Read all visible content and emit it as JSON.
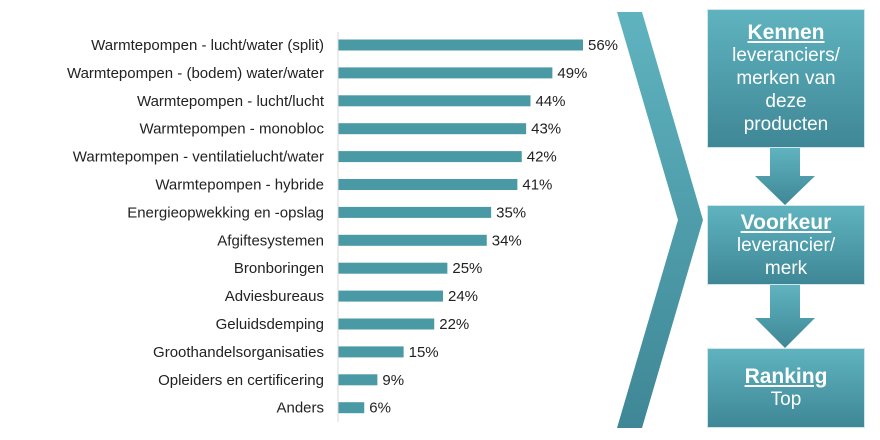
{
  "chart_data": {
    "type": "bar",
    "orientation": "horizontal",
    "categories": [
      "Warmtepompen - lucht/water (split)",
      "Warmtepompen - (bodem) water/water",
      "Warmtepompen - lucht/lucht",
      "Warmtepompen - monobloc",
      "Warmtepompen - ventilatielucht/water",
      "Warmtepompen - hybride",
      "Energieopwekking en -opslag",
      "Afgiftesystemen",
      "Bronboringen",
      "Adviesbureaus",
      "Geluidsdemping",
      "Groothandelsorganisaties",
      "Opleiders en certificering",
      "Anders"
    ],
    "values": [
      56,
      49,
      44,
      43,
      42,
      41,
      35,
      34,
      25,
      24,
      22,
      15,
      9,
      6
    ],
    "labels": [
      "56%",
      "49%",
      "44%",
      "43%",
      "42%",
      "41%",
      "35%",
      "34%",
      "25%",
      "24%",
      "22%",
      "15%",
      "9%",
      "6%"
    ],
    "xlim": [
      0,
      100
    ],
    "grid": false,
    "bar_color": "#4a9aa6"
  },
  "flow": {
    "steps": [
      {
        "title": "Kennen",
        "text": [
          "leveranciers/",
          "merken van",
          "deze",
          "producten"
        ]
      },
      {
        "title": "Voorkeur",
        "text": [
          "leverancier/",
          "merk"
        ]
      },
      {
        "title": "Ranking",
        "text": [
          "Top"
        ]
      }
    ],
    "color": "#4fa3b0"
  }
}
